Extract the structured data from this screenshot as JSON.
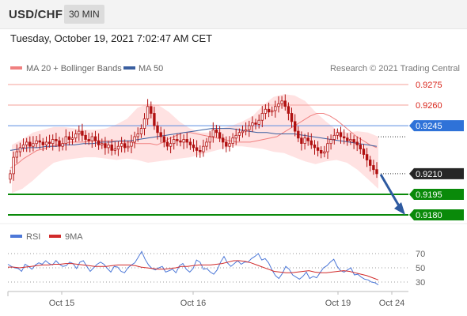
{
  "header": {
    "symbol": "USD/CHF",
    "timeframe": "30 MIN"
  },
  "datetime": "Tuesday, October 19, 2021 7:02:47 AM CET",
  "colors": {
    "candle": "#b01010",
    "bollinger_fill": "#ffe2e2",
    "ma20": "#f08080",
    "ma50": "#3a5fa0",
    "resistance": "#f4a09a",
    "current_line": "#5a8de0",
    "support": "#0a8a0a",
    "current_badge": "#262626",
    "pivot_badge": "#2f72d8",
    "arrow": "#2e5aa0",
    "rsi": "#4d78d8",
    "rsi_ma": "#d12a2a"
  },
  "main_legend": {
    "ma20_label": "MA 20 + Bollinger Bands",
    "ma50_label": "MA 50",
    "copyright": "Research © 2021 Trading Central"
  },
  "rsi_legend": {
    "rsi_label": "RSI",
    "ma_label": "9MA"
  },
  "chart_data": {
    "type": "line",
    "instrument": "USD/CHF",
    "price_axis": {
      "visible_range": [
        0.9172,
        0.9281
      ]
    },
    "levels": [
      {
        "label": "0.9275",
        "value": 0.9275,
        "kind": "resistance"
      },
      {
        "label": "0.9260",
        "value": 0.926,
        "kind": "resistance"
      },
      {
        "label": "0.9245",
        "value": 0.9245,
        "kind": "pivot"
      },
      {
        "label": "0.9210",
        "value": 0.921,
        "kind": "current"
      },
      {
        "label": "0.9195",
        "value": 0.9195,
        "kind": "support"
      },
      {
        "label": "0.9180",
        "value": 0.918,
        "kind": "support"
      }
    ],
    "x_axis": {
      "tick_labels": [
        "Oct 15",
        "Oct 16",
        "Oct 19",
        "Oct 24"
      ]
    },
    "price_close": [
      0.921,
      0.9222,
      0.9226,
      0.9229,
      0.9231,
      0.9233,
      0.923,
      0.9232,
      0.9234,
      0.9233,
      0.9231,
      0.9233,
      0.9232,
      0.9235,
      0.9234,
      0.923,
      0.9232,
      0.9237,
      0.9235,
      0.9236,
      0.9239,
      0.9241,
      0.9238,
      0.9235,
      0.9234,
      0.9237,
      0.9234,
      0.9231,
      0.9232,
      0.9229,
      0.9231,
      0.9227,
      0.9228,
      0.923,
      0.9232,
      0.9229,
      0.923,
      0.9233,
      0.9237,
      0.9239,
      0.9243,
      0.925,
      0.9259,
      0.9254,
      0.9245,
      0.924,
      0.9237,
      0.9233,
      0.923,
      0.9232,
      0.9235,
      0.9234,
      0.9233,
      0.9235,
      0.9233,
      0.9231,
      0.9229,
      0.9227,
      0.9226,
      0.923,
      0.9233,
      0.9237,
      0.9242,
      0.924,
      0.9236,
      0.9233,
      0.923,
      0.9232,
      0.9236,
      0.9238,
      0.924,
      0.9241,
      0.9242,
      0.9245,
      0.9247,
      0.9246,
      0.9249,
      0.9254,
      0.9257,
      0.9255,
      0.9256,
      0.9259,
      0.9261,
      0.9263,
      0.9259,
      0.9254,
      0.9248,
      0.9241,
      0.9236,
      0.9232,
      0.9236,
      0.9234,
      0.9231,
      0.9229,
      0.9227,
      0.9225,
      0.9226,
      0.9232,
      0.9235,
      0.9238,
      0.924,
      0.9237,
      0.9236,
      0.9234,
      0.9235,
      0.9233,
      0.9231,
      0.9228,
      0.9224,
      0.922,
      0.9216,
      0.9213,
      0.921
    ],
    "ma20": [
      0.9214,
      0.9217,
      0.9221,
      0.9224,
      0.9227,
      0.9228,
      0.923,
      0.9231,
      0.9232,
      0.9233,
      0.9233,
      0.9233,
      0.9234,
      0.9234,
      0.9234,
      0.9234,
      0.9234,
      0.9233,
      0.9233,
      0.9232,
      0.9232,
      0.9232,
      0.9231,
      0.9233,
      0.9236,
      0.9238,
      0.924,
      0.924,
      0.9239,
      0.9238,
      0.9237,
      0.9236,
      0.9235,
      0.9234,
      0.9233,
      0.9233,
      0.9233,
      0.9234,
      0.9235,
      0.9236,
      0.9237,
      0.924,
      0.9243,
      0.9246,
      0.9249,
      0.9252,
      0.9254,
      0.9254,
      0.9252,
      0.9249,
      0.9245,
      0.9241,
      0.9237,
      0.9234,
      0.9231,
      0.9229
    ],
    "ma50": [
      0.9227,
      0.9228,
      0.9229,
      0.9229,
      0.923,
      0.923,
      0.9231,
      0.9231,
      0.9232,
      0.9232,
      0.9233,
      0.9233,
      0.9234,
      0.9234,
      0.9235,
      0.9236,
      0.9237,
      0.9238,
      0.9239,
      0.924,
      0.9241,
      0.9242,
      0.9243,
      0.9243,
      0.9243,
      0.9242,
      0.9241,
      0.924,
      0.924,
      0.9239,
      0.9239,
      0.9239,
      0.9238,
      0.9237,
      0.9236,
      0.9235,
      0.9234,
      0.9233,
      0.9232,
      0.9231,
      0.923
    ],
    "bollinger_upper": [
      0.9231,
      0.9235,
      0.924,
      0.9242,
      0.9244,
      0.9244,
      0.9243,
      0.9242,
      0.9242,
      0.9243,
      0.9246,
      0.925,
      0.9258,
      0.9261,
      0.926,
      0.9255,
      0.9248,
      0.9243,
      0.924,
      0.924,
      0.9243,
      0.9245,
      0.9248,
      0.9252,
      0.926,
      0.9266,
      0.9268,
      0.9267,
      0.9263,
      0.9255,
      0.9248,
      0.9242,
      0.924,
      0.9241,
      0.924,
      0.9237
    ],
    "bollinger_lower": [
      0.9196,
      0.9199,
      0.9205,
      0.9212,
      0.9218,
      0.922,
      0.9221,
      0.9222,
      0.9222,
      0.9221,
      0.922,
      0.9221,
      0.922,
      0.9218,
      0.9219,
      0.922,
      0.9221,
      0.9222,
      0.9224,
      0.9226,
      0.9228,
      0.923,
      0.923,
      0.9229,
      0.9228,
      0.9226,
      0.9225,
      0.9222,
      0.9219,
      0.9217,
      0.9219,
      0.922,
      0.9218,
      0.9213,
      0.9206,
      0.9199
    ],
    "forecast": {
      "from": 0.921,
      "to": 0.918
    },
    "rsi_panel": {
      "y_ticks": [
        "70",
        "50",
        "30"
      ],
      "levels": [
        70,
        50,
        30
      ],
      "ylim": [
        20,
        80
      ],
      "rsi": [
        55,
        52,
        50,
        49,
        45,
        55,
        52,
        48,
        54,
        57,
        55,
        60,
        56,
        54,
        60,
        55,
        52,
        53,
        58,
        56,
        49,
        58,
        60,
        52,
        45,
        50,
        55,
        58,
        55,
        49,
        44,
        52,
        51,
        45,
        43,
        50,
        54,
        57,
        65,
        73,
        62,
        54,
        49,
        47,
        50,
        52,
        44,
        46,
        48,
        43,
        53,
        56,
        48,
        44,
        49,
        61,
        58,
        48,
        49,
        44,
        41,
        47,
        58,
        66,
        57,
        52,
        56,
        60,
        55,
        58,
        58,
        63,
        66,
        70,
        61,
        63,
        57,
        47,
        39,
        35,
        42,
        52,
        48,
        40,
        37,
        34,
        38,
        44,
        35,
        38,
        36,
        43,
        50,
        53,
        58,
        62,
        52,
        46,
        44,
        47,
        50,
        40,
        41,
        37,
        34,
        33,
        30,
        29,
        26
      ],
      "rsi_ma": [
        51,
        51,
        50,
        51,
        52,
        53,
        54,
        54,
        55,
        55,
        56,
        56,
        55,
        54,
        53,
        52,
        52,
        52,
        53,
        54,
        54,
        54,
        53,
        51,
        50,
        49,
        48,
        48,
        49,
        50,
        52,
        52,
        53,
        54,
        54,
        54,
        55,
        56,
        58,
        60,
        60,
        59,
        57,
        54,
        51,
        48,
        45,
        44,
        43,
        43,
        44,
        45,
        46,
        44,
        43,
        43,
        44,
        45,
        46,
        45,
        43,
        41,
        39,
        36,
        33
      ]
    }
  }
}
